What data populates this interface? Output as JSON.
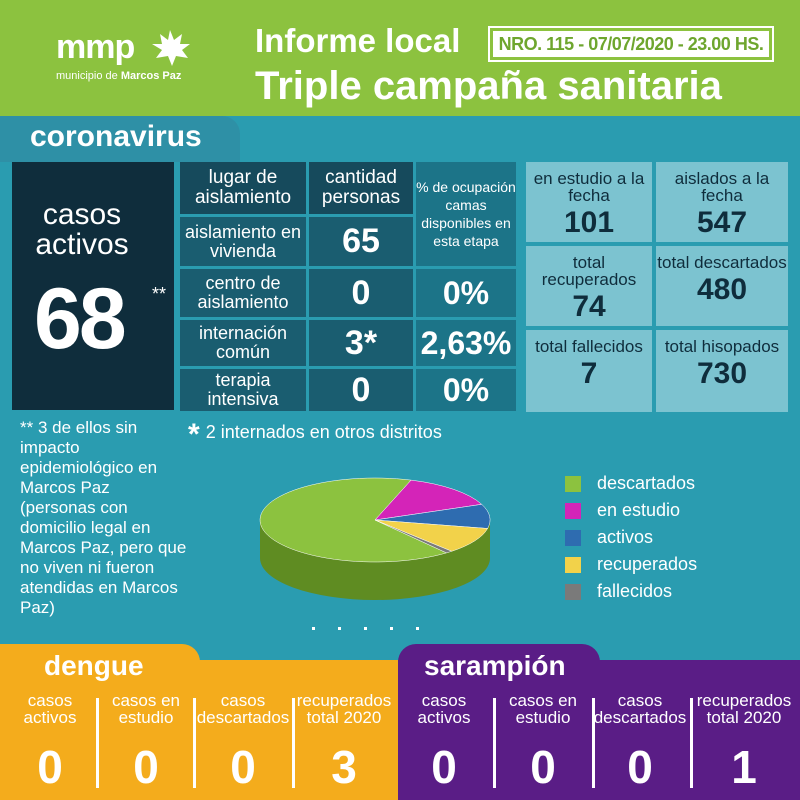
{
  "header": {
    "logo_text": "mmp",
    "logo_sub_prefix": "municipio de ",
    "logo_sub_bold": "Marcos Paz",
    "title_line1": "Informe local",
    "badge": "NRO. 115 - 07/07/2020 - 23.00 HS.",
    "title_line2": "Triple campaña sanitaria",
    "accent_color": "#8cc23f"
  },
  "coronavirus": {
    "section_title": "coronavirus",
    "active_label": "casos activos",
    "active_value": "68",
    "active_marker": "**",
    "table": {
      "headers": [
        "lugar de aislamiento",
        "cantidad personas",
        "% de ocupación camas disponibles en esta etapa"
      ],
      "rows": [
        {
          "place": "aislamiento en vivienda",
          "count": "65",
          "pct": ""
        },
        {
          "place": "centro de aislamiento",
          "count": "0",
          "pct": "0%"
        },
        {
          "place": "internación común",
          "count": "3*",
          "pct": "2,63%"
        },
        {
          "place": "terapia intensiva",
          "count": "0",
          "pct": "0%"
        }
      ]
    },
    "stats": [
      {
        "label": "en estudio a la fecha",
        "value": "101"
      },
      {
        "label": "aislados a la fecha",
        "value": "547"
      },
      {
        "label": "total recuperados",
        "value": "74"
      },
      {
        "label": "total descartados",
        "value": "480"
      },
      {
        "label": "total fallecidos",
        "value": "7"
      },
      {
        "label": "total hisopados",
        "value": "730"
      }
    ],
    "note_double": "** 3 de ellos sin impacto epidemiológico en Marcos Paz (personas con domicilio legal en Marcos Paz, pero que no viven ni fueron atendidas en Marcos Paz)",
    "note_single_marker": "*",
    "note_single": "2 internados en otros distritos",
    "legend": [
      {
        "label": "descartados",
        "color": "#8cc23f"
      },
      {
        "label": "en estudio",
        "color": "#d424b8"
      },
      {
        "label": "activos",
        "color": "#2e6cb0"
      },
      {
        "label": "recuperados",
        "color": "#f2d24a"
      },
      {
        "label": "fallecidos",
        "color": "#7a7a7a"
      }
    ]
  },
  "chart_data": {
    "type": "pie",
    "categories": [
      "descartados",
      "en estudio",
      "activos",
      "recuperados",
      "fallecidos"
    ],
    "values": [
      480,
      101,
      68,
      74,
      7
    ],
    "legend_position": "right"
  },
  "dengue": {
    "title": "dengue",
    "color": "#f4ac1c",
    "items": [
      {
        "label": "casos activos",
        "value": "0"
      },
      {
        "label": "casos en estudio",
        "value": "0"
      },
      {
        "label": "casos descartados",
        "value": "0"
      },
      {
        "label": "recuperados total 2020",
        "value": "3"
      }
    ]
  },
  "sarampion": {
    "title": "sarampión",
    "color": "#5a1d86",
    "items": [
      {
        "label": "casos activos",
        "value": "0"
      },
      {
        "label": "casos en estudio",
        "value": "0"
      },
      {
        "label": "casos descartados",
        "value": "0"
      },
      {
        "label": "recuperados total 2020",
        "value": "1"
      }
    ]
  }
}
